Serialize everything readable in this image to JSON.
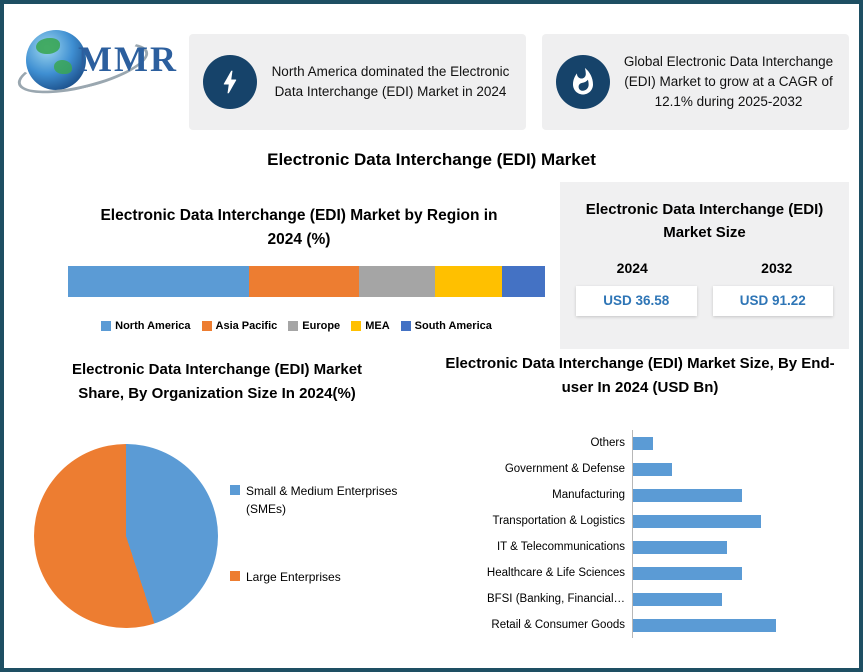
{
  "brand": {
    "logo_text": "MMR"
  },
  "callouts": [
    {
      "icon": "lightning-icon",
      "text": "North America dominated the Electronic Data Interchange (EDI) Market in 2024"
    },
    {
      "icon": "flame-icon",
      "text": "Global Electronic Data Interchange (EDI) Market to grow at a CAGR of 12.1% during 2025-2032"
    }
  ],
  "main_title": "Electronic Data Interchange (EDI) Market",
  "market_size_panel": {
    "title": "Electronic Data Interchange (EDI) Market Size",
    "columns": [
      {
        "year": "2024",
        "value": "USD 36.58"
      },
      {
        "year": "2032",
        "value": "USD 91.22"
      }
    ],
    "value_color": "#2E75B6"
  },
  "chart_data": [
    {
      "type": "bar",
      "subtype": "stacked-horizontal",
      "title": "Electronic Data Interchange (EDI) Market by Region in 2024 (%)",
      "categories": [
        "North America",
        "Asia Pacific",
        "Europe",
        "MEA",
        "South America"
      ],
      "values": [
        38,
        23,
        16,
        14,
        9
      ],
      "colors": [
        "#5B9BD5",
        "#ED7D31",
        "#A5A5A5",
        "#FFC000",
        "#4472C4"
      ],
      "legend_position": "bottom"
    },
    {
      "type": "pie",
      "title": "Electronic Data Interchange (EDI) Market Share, By Organization Size In 2024(%)",
      "categories": [
        "Small & Medium Enterprises (SMEs)",
        "Large Enterprises"
      ],
      "values": [
        45,
        55
      ],
      "colors": [
        "#5B9BD5",
        "#ED7D31"
      ],
      "legend_position": "right"
    },
    {
      "type": "bar",
      "subtype": "horizontal",
      "title": "Electronic Data Interchange (EDI) Market Size, By End-user In 2024 (USD Bn)",
      "categories": [
        "Others",
        "Government & Defense",
        "Manufacturing",
        "Transportation & Logistics",
        "IT & Telecommunications",
        "Healthcare & Life Sciences",
        "BFSI (Banking, Financial…",
        "Retail & Consumer Goods"
      ],
      "values": [
        0.8,
        1.6,
        4.4,
        5.2,
        3.8,
        4.4,
        3.6,
        5.8
      ],
      "color": "#5B9BD5",
      "xmax": 6.2,
      "grid": false
    }
  ]
}
